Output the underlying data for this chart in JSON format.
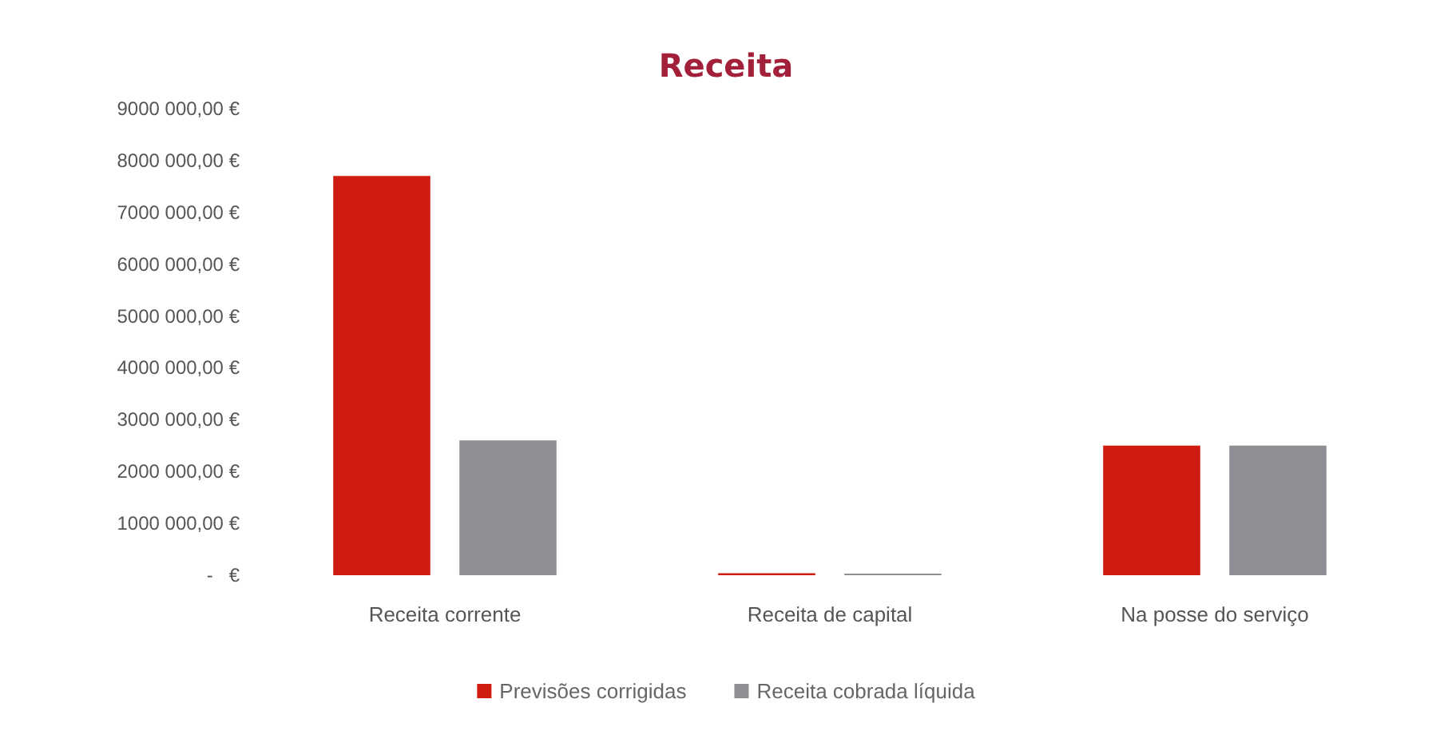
{
  "chart_data": {
    "type": "bar",
    "title": "Receita",
    "categories": [
      "Receita corrente",
      "Receita de capital",
      "Na posse do serviço"
    ],
    "series": [
      {
        "name": "Previsões corrigidas",
        "color": "#d01c10",
        "values": [
          7700000,
          40000,
          2500000
        ]
      },
      {
        "name": "Receita cobrada líquida",
        "color": "#8e8e94",
        "values": [
          2600000,
          30000,
          2500000
        ]
      }
    ],
    "ylim": [
      0,
      9000000
    ],
    "yticks": [
      {
        "value": 0,
        "label": "-   €"
      },
      {
        "value": 1000000,
        "label": "1000 000,00 €"
      },
      {
        "value": 2000000,
        "label": "2000 000,00 €"
      },
      {
        "value": 3000000,
        "label": "3000 000,00 €"
      },
      {
        "value": 4000000,
        "label": "4000 000,00 €"
      },
      {
        "value": 5000000,
        "label": "5000 000,00 €"
      },
      {
        "value": 6000000,
        "label": "6000 000,00 €"
      },
      {
        "value": 7000000,
        "label": "7000 000,00 €"
      },
      {
        "value": 8000000,
        "label": "8000 000,00 €"
      },
      {
        "value": 9000000,
        "label": "9000 000,00 €"
      }
    ],
    "grid": false,
    "legend": "bottom"
  }
}
